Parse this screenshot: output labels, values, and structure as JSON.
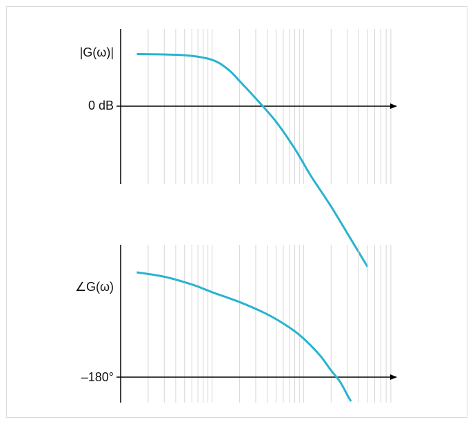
{
  "theme": {
    "curve_color": "#29b3cf",
    "grid_color": "#d6d6d6",
    "axis_color": "#000000"
  },
  "chart_data": [
    {
      "type": "line",
      "title": "",
      "xlabel": "",
      "ylabel": "|G(ω)|",
      "x_scale": "log",
      "xlim": [
        1,
        1000
      ],
      "ylim": [
        -40,
        20
      ],
      "grid": true,
      "legend": "none",
      "reference_line": {
        "y": 0,
        "label": "0 dB"
      },
      "series": [
        {
          "x": [
            1.5,
            5,
            10,
            15,
            20,
            30,
            50,
            80,
            120,
            200,
            350,
            500
          ],
          "y": [
            13.5,
            13.2,
            12,
            9.5,
            6.5,
            2,
            -4,
            -11,
            -18,
            -26,
            -35.5,
            -41.6
          ]
        }
      ]
    },
    {
      "type": "line",
      "title": "",
      "xlabel": "",
      "ylabel": "∠G(ω)",
      "x_scale": "log",
      "xlim": [
        1,
        1000
      ],
      "ylim": [
        -202,
        -60
      ],
      "grid": true,
      "legend": "none",
      "reference_line": {
        "y": -180,
        "label": "–180°"
      },
      "series": [
        {
          "x": [
            1.5,
            3,
            6,
            10,
            20,
            40,
            70,
            100,
            150,
            200,
            250,
            300,
            330
          ],
          "y": [
            -85,
            -89,
            -96,
            -103,
            -112,
            -123,
            -135,
            -145,
            -160,
            -174,
            -184,
            -196,
            -202
          ]
        }
      ]
    }
  ]
}
